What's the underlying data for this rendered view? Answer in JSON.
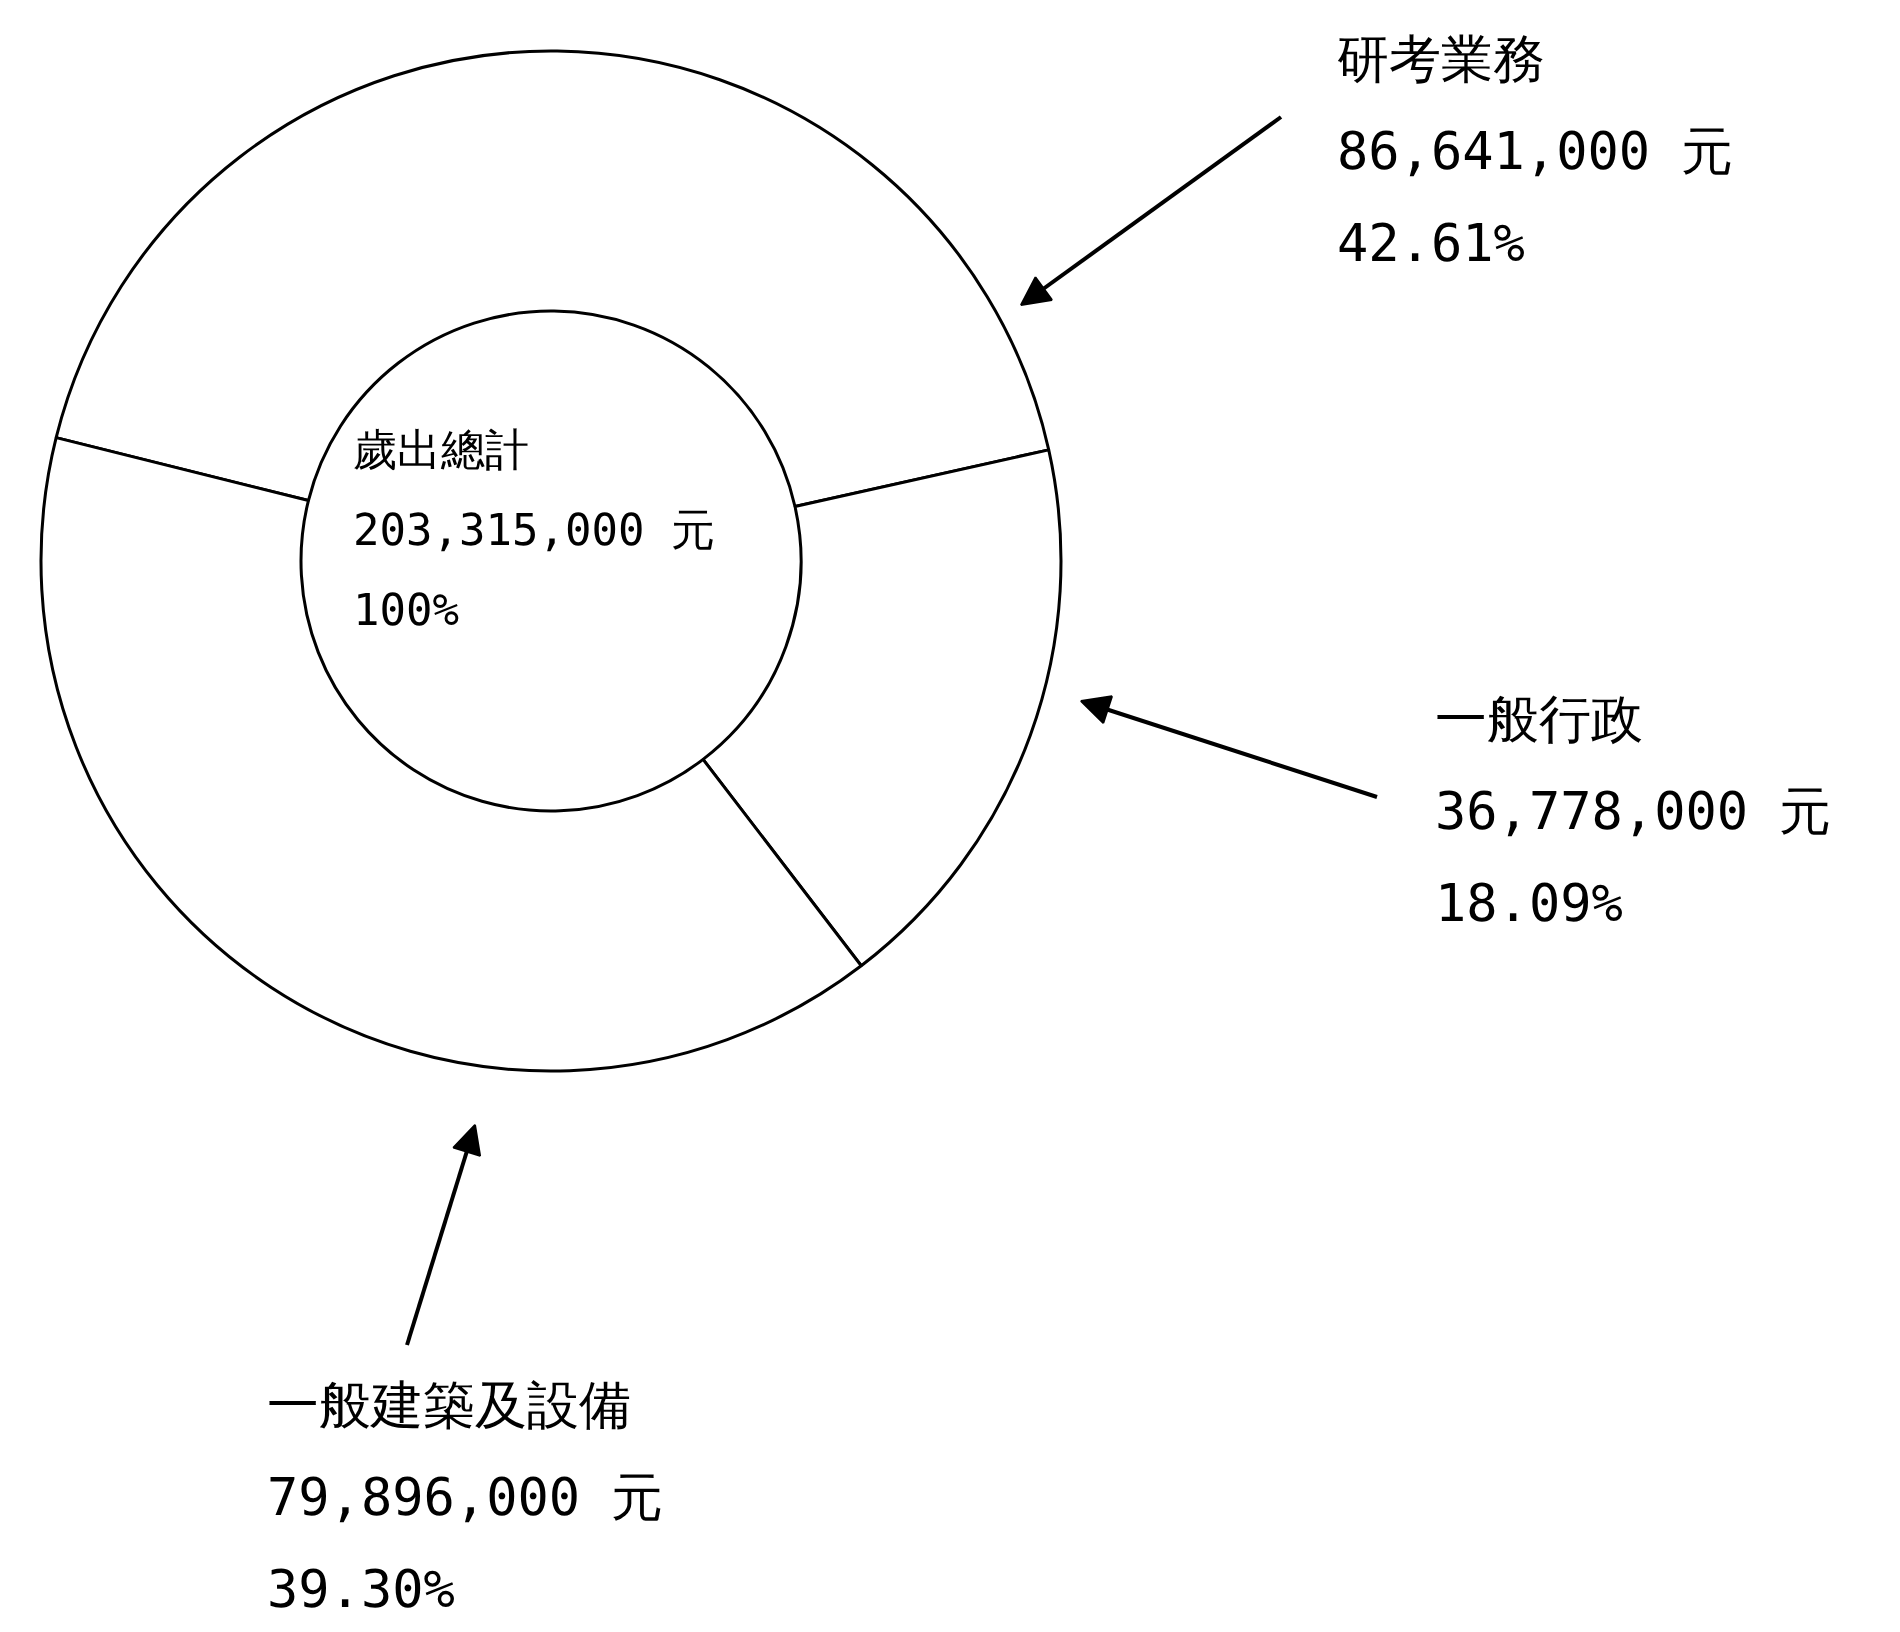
{
  "chart_data": {
    "type": "donut",
    "categories": [
      "研考業務",
      "一般行政",
      "一般建築及設備"
    ],
    "values": [
      86641000,
      36778000,
      79896000
    ],
    "colors": [
      "#ffffff",
      "#ffffff",
      "#ffffff"
    ],
    "value_labels": [
      "86,641,000 元\n42.61%",
      "36,778,000 元\n18.09%",
      "79,896,000 元\n39.30%"
    ],
    "annotations": [
      "歲出總計\n203,315,000 元\n100%"
    ]
  }
}
